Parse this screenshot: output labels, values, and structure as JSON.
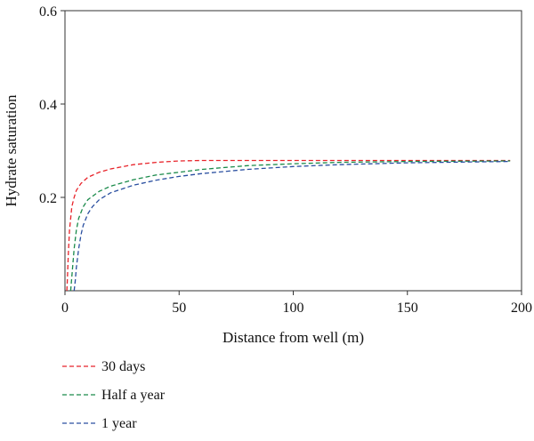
{
  "chart_data": {
    "type": "line",
    "title": "",
    "xlabel": "Distance from well (m)",
    "ylabel": "Hydrate saturation",
    "xlim": [
      0,
      200
    ],
    "ylim": [
      0,
      0.6
    ],
    "x_ticks": [
      0,
      50,
      100,
      150,
      200
    ],
    "x_tick_labels": [
      "0",
      "50",
      "100",
      "150",
      "200"
    ],
    "y_ticks": [
      0.2,
      0.4,
      0.6
    ],
    "y_tick_labels": [
      "0.2",
      "0.4",
      "0.6"
    ],
    "grid": false,
    "legend_position": "below-left",
    "line_style": "dashed",
    "series": [
      {
        "name": "30 days",
        "color": "#e8232a",
        "x": [
          0.8,
          1,
          1.5,
          2,
          3,
          4,
          5,
          7,
          10,
          15,
          20,
          30,
          40,
          50,
          60,
          80,
          100,
          120,
          150,
          195
        ],
        "y": [
          0.0,
          0.02,
          0.08,
          0.13,
          0.18,
          0.2,
          0.215,
          0.23,
          0.243,
          0.254,
          0.261,
          0.27,
          0.275,
          0.278,
          0.279,
          0.279,
          0.279,
          0.279,
          0.279,
          0.279
        ]
      },
      {
        "name": "Half a year",
        "color": "#1a8a4a",
        "x": [
          2.5,
          3,
          4,
          5,
          6,
          8,
          10,
          15,
          20,
          30,
          40,
          50,
          60,
          80,
          100,
          120,
          150,
          195
        ],
        "y": [
          0.0,
          0.03,
          0.09,
          0.13,
          0.155,
          0.18,
          0.195,
          0.213,
          0.224,
          0.238,
          0.248,
          0.254,
          0.26,
          0.268,
          0.272,
          0.275,
          0.277,
          0.278
        ]
      },
      {
        "name": "1 year",
        "color": "#2a4fa0",
        "x": [
          4,
          4.5,
          5,
          6,
          7,
          8,
          10,
          12,
          15,
          20,
          30,
          40,
          50,
          60,
          80,
          100,
          120,
          150,
          195
        ],
        "y": [
          0.0,
          0.02,
          0.05,
          0.09,
          0.12,
          0.14,
          0.165,
          0.18,
          0.195,
          0.21,
          0.226,
          0.237,
          0.245,
          0.251,
          0.26,
          0.266,
          0.27,
          0.274,
          0.277
        ]
      }
    ]
  }
}
